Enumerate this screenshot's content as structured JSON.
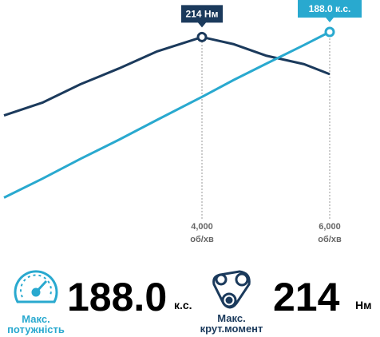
{
  "chart_data": {
    "type": "line",
    "x": [
      900,
      1500,
      2100,
      2700,
      3300,
      4000,
      4500,
      5000,
      5600,
      6000
    ],
    "xlim": [
      900,
      6800
    ],
    "xticks": [
      {
        "value": 4000,
        "label": "4,000"
      },
      {
        "value": 6000,
        "label": "6,000"
      }
    ],
    "xtick_unit": "об/хв",
    "ylim": [
      100,
      240
    ],
    "y2lim": [
      20,
      220
    ],
    "series": [
      {
        "name": "Нм",
        "color": "#1b3a5c",
        "values": [
          159,
          168,
          181,
          192,
          204,
          214,
          209,
          201,
          195,
          188
        ]
      },
      {
        "name": "к.с.",
        "color": "#29a9cf",
        "axis": "y2",
        "values": [
          22,
          41,
          61,
          80,
          100,
          123,
          140,
          156,
          175,
          188
        ]
      }
    ],
    "annotations": [
      {
        "text": "214 Нм",
        "x": 4000,
        "y": 214
      },
      {
        "text": "188.0 к.с.",
        "x": 6000,
        "y": 188,
        "axis": "y2"
      }
    ]
  },
  "stats": [
    {
      "value": "188.0",
      "unit": "к.с.",
      "label_lines": [
        "Макс.",
        "потужність"
      ]
    },
    {
      "value": "214",
      "unit": "Нм",
      "label_lines": [
        "Макс.",
        "крут.момент"
      ]
    }
  ]
}
